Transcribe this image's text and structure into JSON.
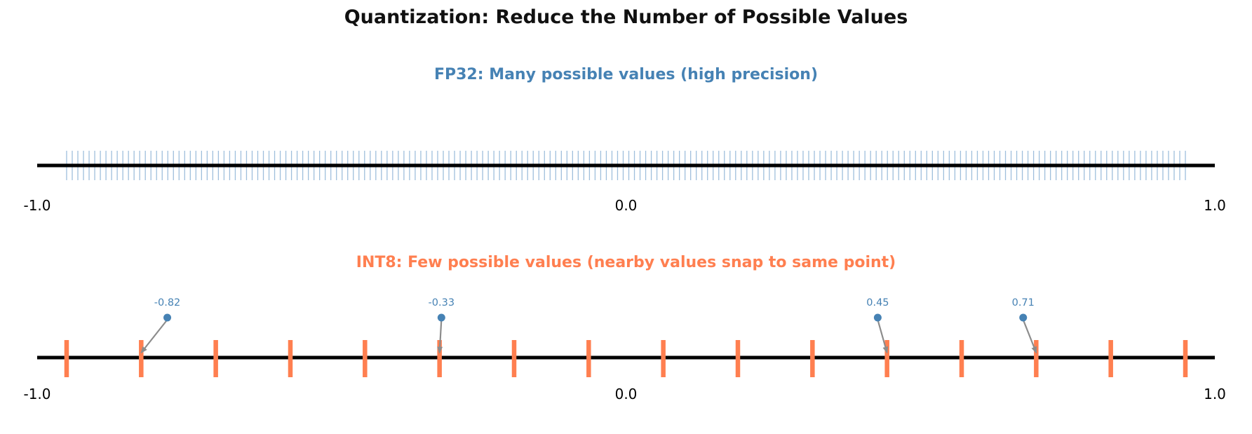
{
  "figure": {
    "title": "Quantization: Reduce the Number of Possible Values",
    "background": "#FFFFFF",
    "axis_color": "#000000"
  },
  "chart_data": [
    {
      "type": "number-line",
      "name": "fp32",
      "title": "FP32: Many possible values (high precision)",
      "title_color": "#4682B4",
      "axis_range": [
        -1.0,
        1.0
      ],
      "axis_tick_labels": [
        "-1.0",
        "0.0",
        "1.0"
      ],
      "axis_tick_values": [
        -1.0,
        0.0,
        1.0
      ],
      "value_ticks": {
        "from": -0.95,
        "to": 0.95,
        "count": 200,
        "color": "#9FBFDC"
      }
    },
    {
      "type": "number-line",
      "name": "int8",
      "title": "INT8: Few possible values (nearby values snap to same point)",
      "title_color": "#FF7F50",
      "axis_range": [
        -1.0,
        1.0
      ],
      "axis_tick_labels": [
        "-1.0",
        "0.0",
        "1.0"
      ],
      "axis_tick_values": [
        -1.0,
        0.0,
        1.0
      ],
      "quant_levels": {
        "from": -0.95,
        "to": 0.95,
        "count": 16,
        "color": "#FF7F50"
      },
      "annotation_color": "#4682B4",
      "arrow_color": "#8C8C8C",
      "annotations": [
        {
          "label": "-0.82",
          "value": -0.82,
          "plotted_at": -0.779,
          "snaps_to": -0.8233
        },
        {
          "label": "-0.33",
          "value": -0.33,
          "plotted_at": -0.3135,
          "snaps_to": -0.3167
        },
        {
          "label": "0.45",
          "value": 0.45,
          "plotted_at": 0.4275,
          "snaps_to": 0.4433
        },
        {
          "label": "0.71",
          "value": 0.71,
          "plotted_at": 0.6745,
          "snaps_to": 0.6967
        }
      ]
    }
  ]
}
